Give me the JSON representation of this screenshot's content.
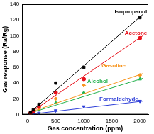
{
  "chart_data": {
    "type": "scatter",
    "x_label": "Gas concentration (ppm)",
    "y_label": "Gas response (Ra/Rg)",
    "x": [
      50,
      100,
      200,
      500,
      1000,
      2000
    ],
    "xlim": [
      -100,
      2150
    ],
    "xticks": [
      0,
      500,
      1000,
      1500,
      2000
    ],
    "ylim": [
      0,
      140
    ],
    "yticks": [
      0,
      20,
      40,
      60,
      80,
      100,
      120,
      140
    ],
    "grid": false,
    "series": [
      {
        "name": "Isopropanol",
        "color": "#000000",
        "marker": "square",
        "values": [
          3,
          6,
          13,
          40,
          60,
          123
        ],
        "fit": {
          "x": [
            0,
            2050
          ],
          "y": [
            0,
            127
          ]
        }
      },
      {
        "name": "Acetone",
        "color": "#e8101a",
        "marker": "circle",
        "values": [
          2,
          4,
          10,
          28,
          45,
          97
        ],
        "fit": {
          "x": [
            0,
            2050
          ],
          "y": [
            0,
            100
          ]
        }
      },
      {
        "name": "Gasoline",
        "color": "#f7941d",
        "marker": "diamond",
        "values": [
          2,
          4,
          8,
          20,
          37,
          50
        ],
        "fit": {
          "x": [
            0,
            2050
          ],
          "y": [
            2,
            52
          ]
        }
      },
      {
        "name": "Alcohol",
        "color": "#22b14c",
        "marker": "triangle",
        "values": [
          1,
          3,
          6,
          15,
          28,
          45
        ],
        "fit": {
          "x": [
            0,
            2050
          ],
          "y": [
            1,
            46
          ]
        }
      },
      {
        "name": "Formaldehyde",
        "color": "#2e3fd8",
        "marker": "triangle_down",
        "values": [
          1,
          1,
          2,
          5,
          10,
          17
        ],
        "fit": {
          "x": [
            0,
            2050
          ],
          "y": [
            0,
            17
          ]
        }
      }
    ]
  }
}
